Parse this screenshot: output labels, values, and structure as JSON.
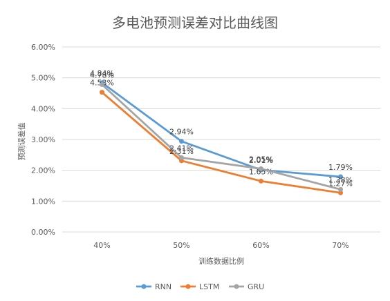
{
  "chart_data": {
    "type": "line",
    "title": "多电池预测误差对比曲线图",
    "xlabel": "训练数据比例",
    "ylabel": "预测误差值",
    "categories": [
      "40%",
      "50%",
      "60%",
      "70%"
    ],
    "ylim": [
      0,
      0.06
    ],
    "yticks": [
      "0.00%",
      "1.00%",
      "2.00%",
      "3.00%",
      "4.00%",
      "5.00%",
      "6.00%"
    ],
    "grid": true,
    "legend_position": "bottom",
    "series": [
      {
        "name": "RNN",
        "values": [
          0.0484,
          0.0294,
          0.0201,
          0.0179
        ],
        "labels": [
          "4.84%",
          "2.94%",
          "2.01%",
          "1.79%"
        ],
        "color": "#5b9bd5"
      },
      {
        "name": "LSTM",
        "values": [
          0.0453,
          0.0231,
          0.0165,
          0.0127
        ],
        "labels": [
          "4.53%",
          "2.31%",
          "1.65%",
          "1.27%"
        ],
        "color": "#ed7d31"
      },
      {
        "name": "GRU",
        "values": [
          0.0478,
          0.0241,
          0.0205,
          0.0138
        ],
        "labels": [
          "4.78%",
          "2.41%",
          "2.05%",
          "1.38%"
        ],
        "color": "#a5a5a5"
      }
    ]
  }
}
